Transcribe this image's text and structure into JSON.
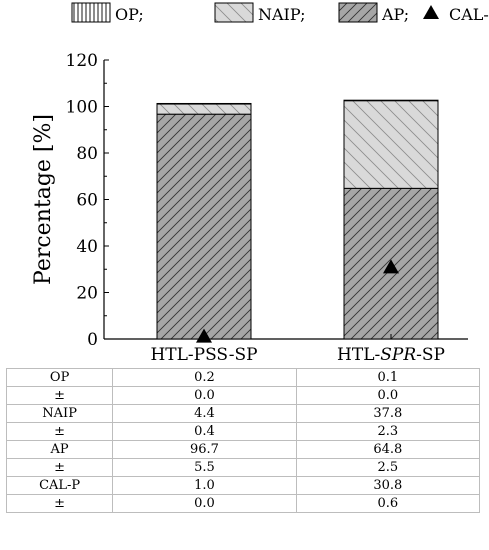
{
  "chart_data": {
    "type": "bar",
    "stacked": true,
    "categories": [
      "HTL-PSS-SP",
      "HTL-SPR-SP"
    ],
    "category_parts": [
      {
        "pre": "HTL-PSS-SP",
        "ital": "",
        "post": ""
      },
      {
        "pre": "HTL-",
        "ital": "SPR",
        "post": "-SP"
      }
    ],
    "series": [
      {
        "name": "AP",
        "values": [
          96.7,
          64.8
        ],
        "pattern": "dense-diagonal",
        "color": "#a6a6a6"
      },
      {
        "name": "NAIP",
        "values": [
          4.4,
          37.8
        ],
        "pattern": "sparse-diagonal",
        "color": "#d9d9d9"
      },
      {
        "name": "OP",
        "values": [
          0.2,
          0.1
        ],
        "pattern": "vertical-lines",
        "color": "#ffffff"
      }
    ],
    "markers": {
      "name": "CAL-P",
      "symbol": "triangle",
      "values": [
        1.0,
        30.8
      ]
    },
    "legend": {
      "position": "top",
      "items": [
        {
          "label": "OP;",
          "swatch": "vertical-lines"
        },
        {
          "label": "NAIP;",
          "swatch": "sparse-diagonal"
        },
        {
          "label": "AP;",
          "swatch": "dense-diagonal"
        },
        {
          "label": "CAL-P;",
          "swatch": "triangle"
        }
      ]
    },
    "ylabel": "Percentage [%]",
    "ylim": [
      0,
      120
    ],
    "yticks": [
      0,
      20,
      40,
      60,
      80,
      100,
      120
    ],
    "grid": false
  },
  "table": {
    "rows": [
      {
        "label": "OP",
        "v1": "0.2",
        "v2": "0.1"
      },
      {
        "label": "±",
        "v1": "0.0",
        "v2": "0.0"
      },
      {
        "label": "NAIP",
        "v1": "4.4",
        "v2": "37.8"
      },
      {
        "label": "±",
        "v1": "0.4",
        "v2": "2.3"
      },
      {
        "label": "AP",
        "v1": "96.7",
        "v2": "64.8"
      },
      {
        "label": "±",
        "v1": "5.5",
        "v2": "2.5"
      },
      {
        "label": "CAL-P",
        "v1": "1.0",
        "v2": "30.8"
      },
      {
        "label": "±",
        "v1": "0.0",
        "v2": "0.6"
      }
    ]
  }
}
